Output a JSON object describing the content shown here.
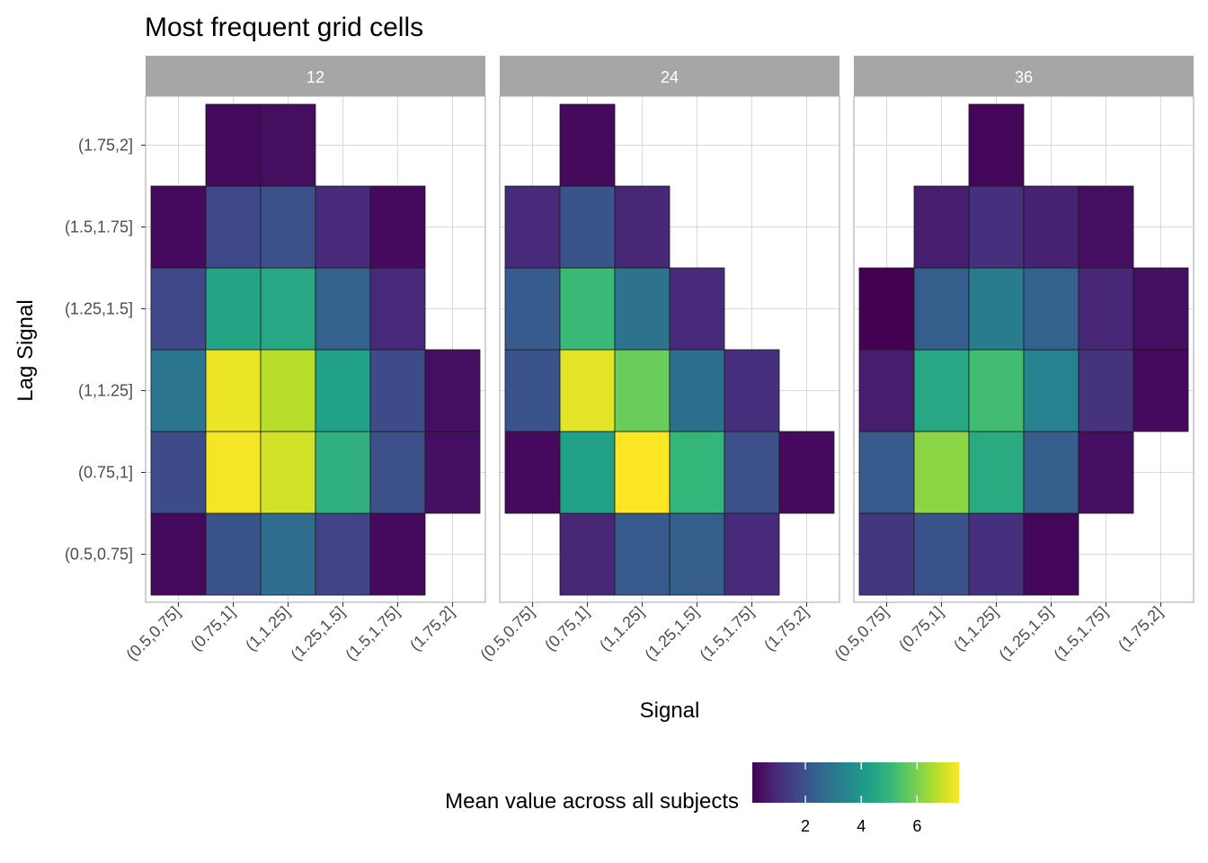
{
  "chart_data": {
    "type": "heatmap",
    "title": "Most frequent grid cells",
    "xlabel": "Signal",
    "ylabel": "Lag Signal",
    "x_categories": [
      "(0.5,0.75]",
      "(0.75,1]",
      "(1,1.25]",
      "(1.25,1.5]",
      "(1.5,1.75]",
      "(1.75,2]"
    ],
    "y_categories": [
      "(0.5,0.75]",
      "(0.75,1]",
      "(1,1.25]",
      "(1.25,1.5]",
      "(1.5,1.75]",
      "(1.75,2]"
    ],
    "legend": {
      "title": "Mean value across all subjects",
      "placement": "bottom",
      "min": 0.1,
      "max": 7.5,
      "ticks": [
        2,
        4,
        6
      ],
      "palette": [
        "#440154",
        "#482878",
        "#3e4a89",
        "#31688e",
        "#26828e",
        "#1f9e89",
        "#35b779",
        "#6ece58",
        "#b5de2b",
        "#fde725"
      ]
    },
    "grid": true,
    "panels": [
      {
        "facet": "12",
        "cells": [
          {
            "x": "(0.5,0.75]",
            "y": "(0.5,0.75]",
            "value": 0.3
          },
          {
            "x": "(0.75,1]",
            "y": "(0.5,0.75]",
            "value": 2.0
          },
          {
            "x": "(1,1.25]",
            "y": "(0.5,0.75]",
            "value": 2.7
          },
          {
            "x": "(1.25,1.5]",
            "y": "(0.5,0.75]",
            "value": 1.6
          },
          {
            "x": "(1.5,1.75]",
            "y": "(0.5,0.75]",
            "value": 0.3
          },
          {
            "x": "(0.5,0.75]",
            "y": "(0.75,1]",
            "value": 1.8
          },
          {
            "x": "(0.75,1]",
            "y": "(0.75,1]",
            "value": 7.4
          },
          {
            "x": "(1,1.25]",
            "y": "(0.75,1]",
            "value": 7.0
          },
          {
            "x": "(1.25,1.5]",
            "y": "(0.75,1]",
            "value": 4.8
          },
          {
            "x": "(1.5,1.75]",
            "y": "(0.75,1]",
            "value": 1.9
          },
          {
            "x": "(1.75,2]",
            "y": "(0.75,1]",
            "value": 0.4
          },
          {
            "x": "(0.5,0.75]",
            "y": "(1,1.25]",
            "value": 3.0
          },
          {
            "x": "(0.75,1]",
            "y": "(1,1.25]",
            "value": 7.3
          },
          {
            "x": "(1,1.25]",
            "y": "(1,1.25]",
            "value": 6.7
          },
          {
            "x": "(1.25,1.5]",
            "y": "(1,1.25]",
            "value": 4.3
          },
          {
            "x": "(1.5,1.75]",
            "y": "(1,1.25]",
            "value": 1.8
          },
          {
            "x": "(1.75,2]",
            "y": "(1,1.25]",
            "value": 0.4
          },
          {
            "x": "(0.5,0.75]",
            "y": "(1.25,1.5]",
            "value": 1.7
          },
          {
            "x": "(0.75,1]",
            "y": "(1.25,1.5]",
            "value": 4.4
          },
          {
            "x": "(1,1.25]",
            "y": "(1.25,1.5]",
            "value": 4.5
          },
          {
            "x": "(1.25,1.5]",
            "y": "(1.25,1.5]",
            "value": 2.4
          },
          {
            "x": "(1.5,1.75]",
            "y": "(1.25,1.5]",
            "value": 1.0
          },
          {
            "x": "(0.5,0.75]",
            "y": "(1.5,1.75]",
            "value": 0.3
          },
          {
            "x": "(0.75,1]",
            "y": "(1.5,1.75]",
            "value": 1.7
          },
          {
            "x": "(1,1.25]",
            "y": "(1.5,1.75]",
            "value": 1.9
          },
          {
            "x": "(1.25,1.5]",
            "y": "(1.5,1.75]",
            "value": 1.0
          },
          {
            "x": "(1.5,1.75]",
            "y": "(1.5,1.75]",
            "value": 0.3
          },
          {
            "x": "(0.75,1]",
            "y": "(1.75,2]",
            "value": 0.3
          },
          {
            "x": "(1,1.25]",
            "y": "(1.75,2]",
            "value": 0.4
          }
        ]
      },
      {
        "facet": "24",
        "cells": [
          {
            "x": "(0.75,1]",
            "y": "(0.5,0.75]",
            "value": 0.9
          },
          {
            "x": "(1,1.25]",
            "y": "(0.5,0.75]",
            "value": 2.2
          },
          {
            "x": "(1.25,1.5]",
            "y": "(0.5,0.75]",
            "value": 2.3
          },
          {
            "x": "(1.5,1.75]",
            "y": "(0.5,0.75]",
            "value": 1.0
          },
          {
            "x": "(0.5,0.75]",
            "y": "(0.75,1]",
            "value": 0.3
          },
          {
            "x": "(0.75,1]",
            "y": "(0.75,1]",
            "value": 4.3
          },
          {
            "x": "(1,1.25]",
            "y": "(0.75,1]",
            "value": 7.5
          },
          {
            "x": "(1.25,1.5]",
            "y": "(0.75,1]",
            "value": 5.0
          },
          {
            "x": "(1.5,1.75]",
            "y": "(0.75,1]",
            "value": 1.9
          },
          {
            "x": "(1.75,2]",
            "y": "(0.75,1]",
            "value": 0.3
          },
          {
            "x": "(0.5,0.75]",
            "y": "(1,1.25]",
            "value": 2.0
          },
          {
            "x": "(0.75,1]",
            "y": "(1,1.25]",
            "value": 7.2
          },
          {
            "x": "(1,1.25]",
            "y": "(1,1.25]",
            "value": 5.8
          },
          {
            "x": "(1.25,1.5]",
            "y": "(1,1.25]",
            "value": 2.8
          },
          {
            "x": "(1.5,1.75]",
            "y": "(1,1.25]",
            "value": 1.1
          },
          {
            "x": "(0.5,0.75]",
            "y": "(1.25,1.5]",
            "value": 2.2
          },
          {
            "x": "(0.75,1]",
            "y": "(1.25,1.5]",
            "value": 5.1
          },
          {
            "x": "(1,1.25]",
            "y": "(1.25,1.5]",
            "value": 2.9
          },
          {
            "x": "(1.25,1.5]",
            "y": "(1.25,1.5]",
            "value": 1.0
          },
          {
            "x": "(0.5,0.75]",
            "y": "(1.5,1.75]",
            "value": 1.0
          },
          {
            "x": "(0.75,1]",
            "y": "(1.5,1.75]",
            "value": 2.0
          },
          {
            "x": "(1,1.25]",
            "y": "(1.5,1.75]",
            "value": 0.9
          },
          {
            "x": "(0.75,1]",
            "y": "(1.75,2]",
            "value": 0.3
          }
        ]
      },
      {
        "facet": "36",
        "cells": [
          {
            "x": "(0.5,0.75]",
            "y": "(0.5,0.75]",
            "value": 1.3
          },
          {
            "x": "(0.75,1]",
            "y": "(0.5,0.75]",
            "value": 2.0
          },
          {
            "x": "(1,1.25]",
            "y": "(0.5,0.75]",
            "value": 1.1
          },
          {
            "x": "(1.25,1.5]",
            "y": "(0.5,0.75]",
            "value": 0.2
          },
          {
            "x": "(0.5,0.75]",
            "y": "(0.75,1]",
            "value": 2.2
          },
          {
            "x": "(0.75,1]",
            "y": "(0.75,1]",
            "value": 6.2
          },
          {
            "x": "(1,1.25]",
            "y": "(0.75,1]",
            "value": 4.6
          },
          {
            "x": "(1.25,1.5]",
            "y": "(0.75,1]",
            "value": 2.3
          },
          {
            "x": "(1.5,1.75]",
            "y": "(0.75,1]",
            "value": 0.4
          },
          {
            "x": "(0.5,0.75]",
            "y": "(1,1.25]",
            "value": 0.7
          },
          {
            "x": "(0.75,1]",
            "y": "(1,1.25]",
            "value": 4.5
          },
          {
            "x": "(1,1.25]",
            "y": "(1,1.25]",
            "value": 5.2
          },
          {
            "x": "(1.25,1.5]",
            "y": "(1,1.25]",
            "value": 3.4
          },
          {
            "x": "(1.5,1.75]",
            "y": "(1,1.25]",
            "value": 1.2
          },
          {
            "x": "(1.75,2]",
            "y": "(1,1.25]",
            "value": 0.3
          },
          {
            "x": "(0.5,0.75]",
            "y": "(1.25,1.5]",
            "value": 0.1
          },
          {
            "x": "(0.75,1]",
            "y": "(1.25,1.5]",
            "value": 2.3
          },
          {
            "x": "(1,1.25]",
            "y": "(1.25,1.5]",
            "value": 3.2
          },
          {
            "x": "(1.25,1.5]",
            "y": "(1.25,1.5]",
            "value": 2.4
          },
          {
            "x": "(1.5,1.75]",
            "y": "(1.25,1.5]",
            "value": 0.9
          },
          {
            "x": "(1.75,2]",
            "y": "(1.25,1.5]",
            "value": 0.4
          },
          {
            "x": "(0.75,1]",
            "y": "(1.5,1.75]",
            "value": 0.7
          },
          {
            "x": "(1,1.25]",
            "y": "(1.5,1.75]",
            "value": 1.1
          },
          {
            "x": "(1.25,1.5]",
            "y": "(1.5,1.75]",
            "value": 0.8
          },
          {
            "x": "(1.5,1.75]",
            "y": "(1.5,1.75]",
            "value": 0.4
          },
          {
            "x": "(1,1.25]",
            "y": "(1.75,2]",
            "value": 0.2
          }
        ]
      }
    ]
  }
}
